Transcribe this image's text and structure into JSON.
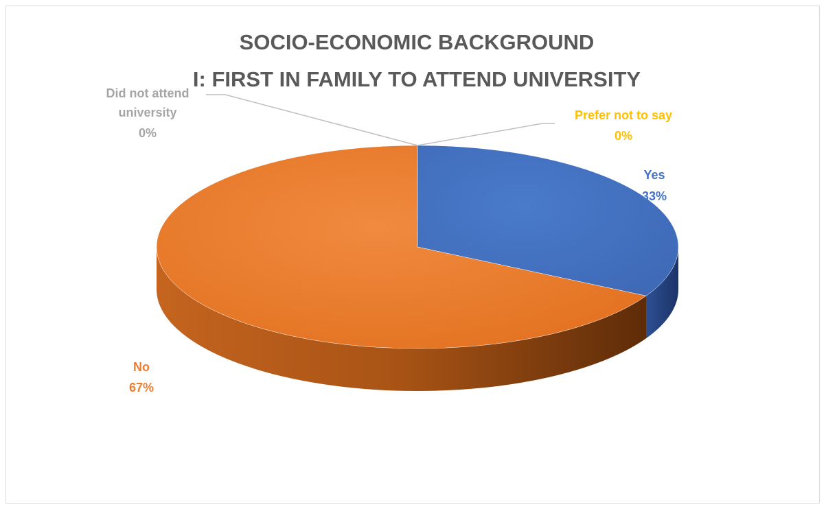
{
  "chart_data": {
    "type": "pie",
    "title": [
      "SOCIO-ECONOMIC BACKGROUND",
      "I: FIRST IN FAMILY TO ATTEND UNIVERSITY"
    ],
    "slices": [
      {
        "label": "Yes",
        "value": 33,
        "display": "33%",
        "color": "#4472c4"
      },
      {
        "label": "No",
        "value": 67,
        "display": "67%",
        "color": "#ed7d31"
      },
      {
        "label": "Did not attend university",
        "value": 0,
        "display": "0%",
        "color": "#a5a5a5"
      },
      {
        "label": "Prefer not to say",
        "value": 0,
        "display": "0%",
        "color": "#ffc000"
      }
    ]
  }
}
